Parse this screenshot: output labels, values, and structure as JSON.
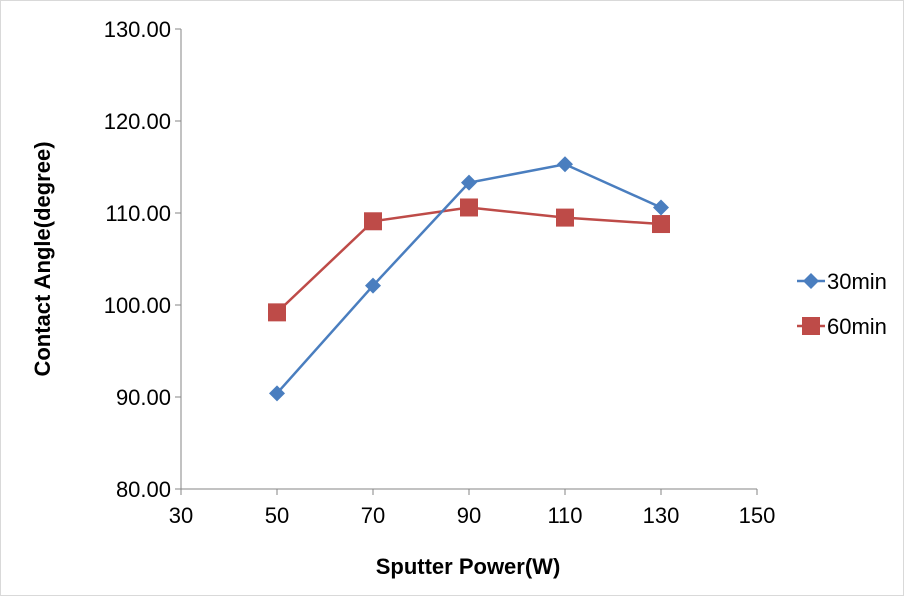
{
  "chart_data": {
    "type": "line",
    "title": "",
    "xlabel": "Sputter Power(W)",
    "ylabel": "Contact Angle(degree)",
    "xlim": [
      30,
      150
    ],
    "ylim": [
      80,
      130
    ],
    "x_ticks": [
      "30",
      "50",
      "70",
      "90",
      "110",
      "130",
      "150"
    ],
    "y_ticks": [
      "80.00",
      "90.00",
      "100.00",
      "110.00",
      "120.00",
      "130.00"
    ],
    "grid": false,
    "legend_position": "right",
    "x": [
      50,
      70,
      90,
      110,
      130
    ],
    "series": [
      {
        "name": "30min",
        "values": [
          90.4,
          102.1,
          113.3,
          115.3,
          110.6
        ],
        "color": "#4a7ebf",
        "marker": "diamond"
      },
      {
        "name": "60min",
        "values": [
          99.2,
          109.1,
          110.6,
          109.5,
          108.8
        ],
        "color": "#be4b48",
        "marker": "square"
      }
    ]
  }
}
